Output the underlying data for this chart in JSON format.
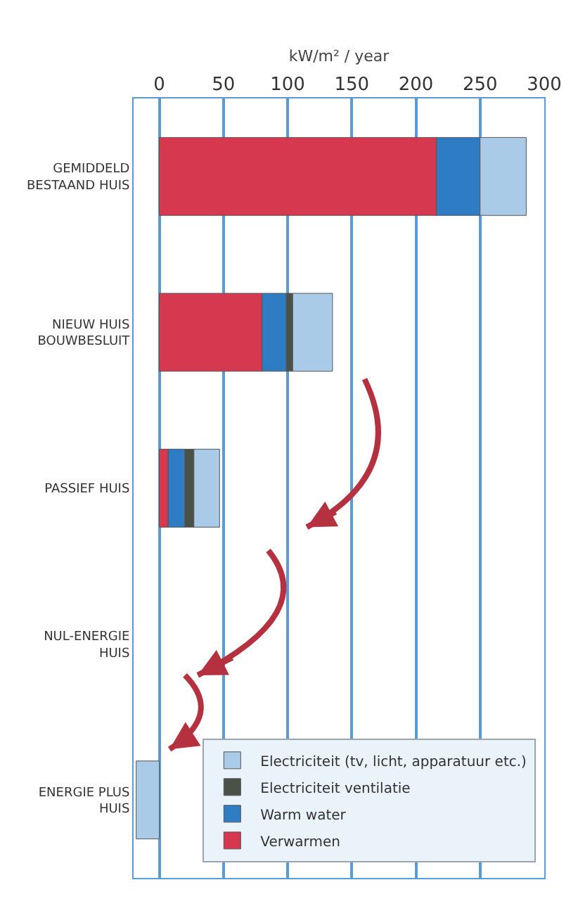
{
  "chart_data": {
    "type": "bar",
    "orientation": "horizontal",
    "stacked": true,
    "xlabel": "kW/m² / year",
    "categories": [
      "GEMIDDELD\nBESTAAND HUIS",
      "NIEUW HUIS\nBOUWBESLUIT",
      "PASSIEF HUIS",
      "NUL-ENERGIE\nHUIS",
      "ENERGIE PLUS\nHUIS"
    ],
    "series": [
      {
        "name": "Verwarmen",
        "color": "#d6384f",
        "values": [
          216,
          80,
          7,
          null,
          null
        ]
      },
      {
        "name": "Warm water",
        "color": "#2e7dc4",
        "values": [
          34,
          19,
          13,
          null,
          null
        ]
      },
      {
        "name": "Electriciteit ventilatie",
        "color": "#4a5248",
        "values": [
          null,
          5,
          7,
          null,
          null
        ]
      },
      {
        "name": "Electriciteit (tv, licht, apparatuur etc.)",
        "color": "#a9cbe8",
        "values": [
          36,
          31,
          20,
          null,
          -18
        ]
      }
    ],
    "xlim": [
      -20,
      300
    ],
    "xticks": [
      0,
      50,
      100,
      150,
      200,
      250,
      300
    ],
    "grid": "x",
    "legend": "bottom right"
  }
}
